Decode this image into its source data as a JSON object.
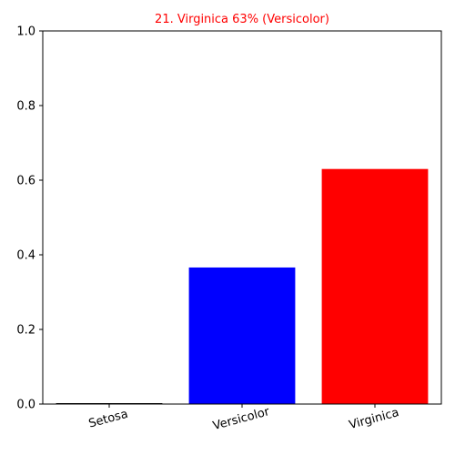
{
  "chart_data": {
    "type": "bar",
    "title": "21. Virginica 63% (Versicolor)",
    "title_color": "#ff0000",
    "categories": [
      "Setosa",
      "Versicolor",
      "Virginica"
    ],
    "values": [
      0.0,
      0.366,
      0.63
    ],
    "bar_colors": [
      "#000000",
      "#0000ff",
      "#ff0000"
    ],
    "xlabel": "",
    "ylabel": "",
    "ylim": [
      0,
      1
    ],
    "yticks": [
      "0.0",
      "0.2",
      "0.4",
      "0.6",
      "0.8",
      "1.0"
    ],
    "grid": false,
    "legend": "none"
  }
}
